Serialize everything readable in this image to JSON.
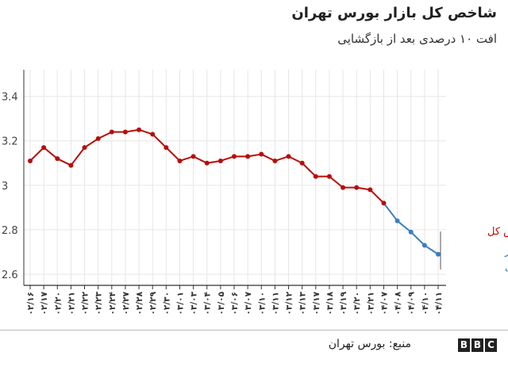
{
  "title": "شاخص کل بازار بورس تهران",
  "subtitle": "افت ۱۰ درصدی بعد از بازگشایی",
  "source": "منبع: بورس تهران",
  "logo": [
    "B",
    "B",
    "C"
  ],
  "colors": {
    "red": "#b80c09",
    "blue": "#3a7fc1",
    "grid": "#e6e6e6",
    "axis": "#333333"
  },
  "chart_data": {
    "type": "line",
    "ylim": [
      2.55,
      3.52
    ],
    "yticks": [
      2.6,
      2.8,
      3,
      3.2,
      3.4
    ],
    "ytick_labels": [
      "2.6",
      "2.8",
      "3",
      "3.2",
      "3.4"
    ],
    "categories": [
      "۰۲/۱۶",
      "۰۲/۱۷",
      "۰۲/۲۰",
      "۰۲/۲۱",
      "۰۲/۲۲",
      "۰۲/۲۳",
      "۰۲/۲۴",
      "۰۲/۲۷",
      "۰۲/۲۸",
      "۰۲/۲۹",
      "۰۲/۳۰",
      "۰۳/۰۱",
      "۰۳/۰۳",
      "۰۳/۰۴",
      "۰۳/۰۵",
      "۰۳/۰۶",
      "۰۳/۰۷",
      "۰۳/۱۰",
      "۰۳/۱۱",
      "۰۳/۱۲",
      "۰۳/۱۳",
      "۰۳/۱۷",
      "۰۳/۱۸",
      "۰۳/۱۹",
      "۰۳/۲۰",
      "۰۳/۲۱",
      "۰۴/۰۷",
      "۰۴/۰۸",
      "۰۴/۰۹",
      "۰۴/۱۰",
      "۰۴/۱۱"
    ],
    "values": [
      3.11,
      3.17,
      3.12,
      3.09,
      3.17,
      3.21,
      3.24,
      3.24,
      3.25,
      3.23,
      3.17,
      3.11,
      3.13,
      3.1,
      3.11,
      3.13,
      3.13,
      3.14,
      3.11,
      3.13,
      3.1,
      3.04,
      3.04,
      2.99,
      2.99,
      2.98,
      2.92,
      2.84,
      2.79,
      2.73,
      2.69
    ],
    "split_index": 26,
    "series": [
      {
        "name": "شاخص کل",
        "color": "#b80c09"
      },
      {
        "name": "شاخص بعد از بازگشایی",
        "color": "#3a7fc1"
      }
    ]
  }
}
